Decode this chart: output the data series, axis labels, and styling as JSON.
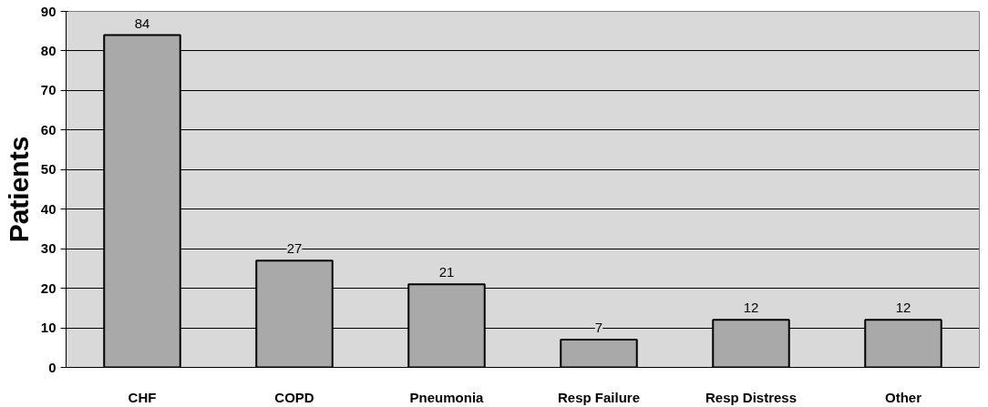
{
  "chart_data": {
    "type": "bar",
    "ylabel": "Patients",
    "categories": [
      "CHF",
      "COPD",
      "Pneumonia",
      "Resp Failure",
      "Resp Distress",
      "Other"
    ],
    "values": [
      84,
      27,
      21,
      7,
      12,
      12
    ],
    "color": "#a9a9a9",
    "ylim": [
      0,
      90
    ],
    "yticks": [
      0,
      10,
      20,
      30,
      40,
      50,
      60,
      70,
      80,
      90
    ],
    "grid": "y",
    "data_labels": true
  }
}
